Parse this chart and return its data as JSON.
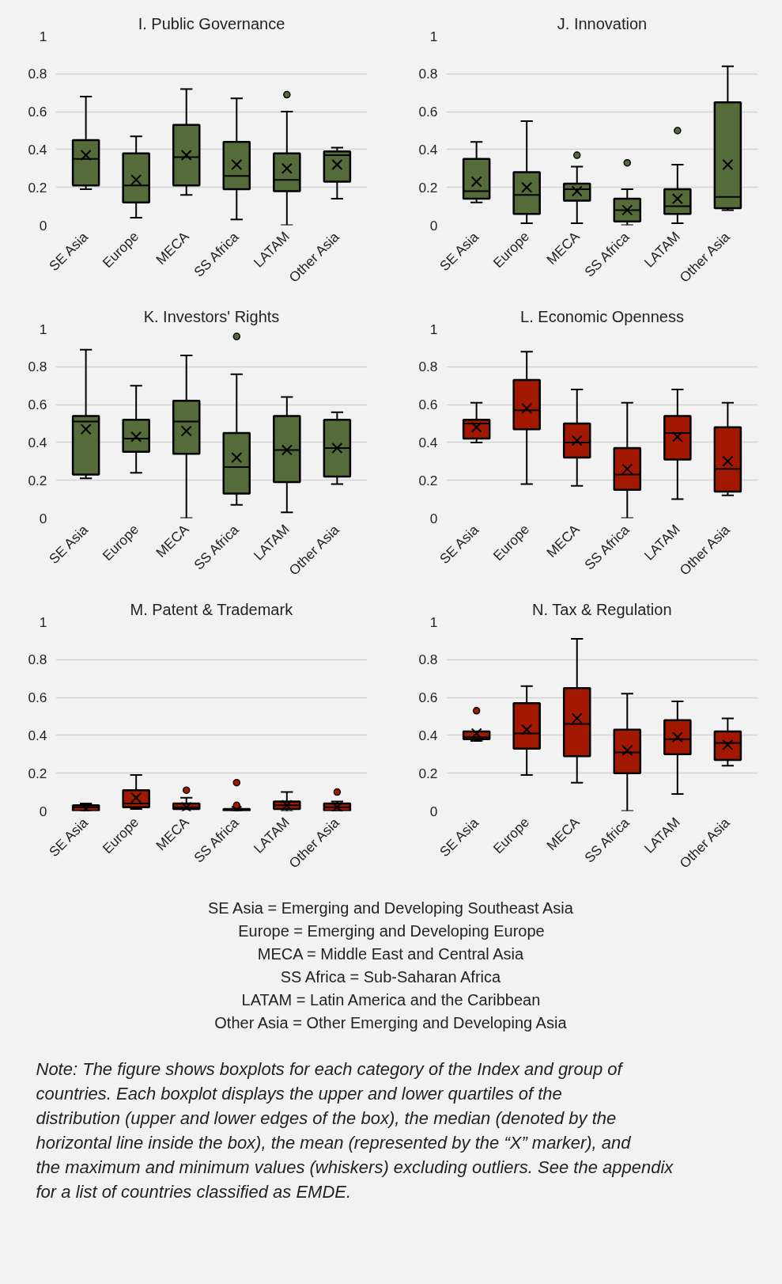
{
  "chart_data": [
    {
      "type": "box",
      "title": "I. Public Governance",
      "categories": [
        "SE Asia",
        "Europe",
        "MECA",
        "SS Africa",
        "LATAM",
        "Other Asia"
      ],
      "color": "#556b3a",
      "ylim": [
        0,
        1
      ],
      "yticks": [
        0,
        0.2,
        0.4,
        0.6,
        0.8,
        1
      ],
      "grid": "y",
      "boxes": [
        {
          "low": 0.19,
          "q1": 0.21,
          "median": 0.35,
          "q3": 0.45,
          "high": 0.68,
          "mean": 0.37
        },
        {
          "low": 0.04,
          "q1": 0.12,
          "median": 0.21,
          "q3": 0.38,
          "high": 0.47,
          "mean": 0.24
        },
        {
          "low": 0.16,
          "q1": 0.21,
          "median": 0.36,
          "q3": 0.53,
          "high": 0.72,
          "mean": 0.37
        },
        {
          "low": 0.03,
          "q1": 0.19,
          "median": 0.26,
          "q3": 0.44,
          "high": 0.67,
          "mean": 0.32
        },
        {
          "low": 0,
          "q1": 0.18,
          "median": 0.24,
          "q3": 0.38,
          "high": 0.6,
          "mean": 0.3,
          "outliers": [
            0.69
          ]
        },
        {
          "low": 0.14,
          "q1": 0.23,
          "median": 0.37,
          "q3": 0.39,
          "high": 0.41,
          "mean": 0.32
        }
      ]
    },
    {
      "type": "box",
      "title": "J. Innovation",
      "categories": [
        "SE Asia",
        "Europe",
        "MECA",
        "SS Africa",
        "LATAM",
        "Other Asia"
      ],
      "color": "#556b3a",
      "ylim": [
        0,
        1
      ],
      "yticks": [
        0,
        0.2,
        0.4,
        0.6,
        0.8,
        1
      ],
      "grid": "y",
      "boxes": [
        {
          "low": 0.12,
          "q1": 0.14,
          "median": 0.18,
          "q3": 0.35,
          "high": 0.44,
          "mean": 0.23
        },
        {
          "low": 0.01,
          "q1": 0.06,
          "median": 0.16,
          "q3": 0.28,
          "high": 0.55,
          "mean": 0.2
        },
        {
          "low": 0.01,
          "q1": 0.13,
          "median": 0.19,
          "q3": 0.22,
          "high": 0.31,
          "mean": 0.18,
          "outliers": [
            0.37
          ]
        },
        {
          "low": 0,
          "q1": 0.02,
          "median": 0.08,
          "q3": 0.14,
          "high": 0.19,
          "mean": 0.08,
          "outliers": [
            0.33
          ]
        },
        {
          "low": 0.01,
          "q1": 0.06,
          "median": 0.1,
          "q3": 0.19,
          "high": 0.32,
          "mean": 0.14,
          "outliers": [
            0.5
          ]
        },
        {
          "low": 0.08,
          "q1": 0.09,
          "median": 0.15,
          "q3": 0.65,
          "high": 0.84,
          "mean": 0.32
        }
      ]
    },
    {
      "type": "box",
      "title": "K. Investors' Rights",
      "categories": [
        "SE Asia",
        "Europe",
        "MECA",
        "SS Africa",
        "LATAM",
        "Other Asia"
      ],
      "color": "#556b3a",
      "ylim": [
        0,
        1
      ],
      "yticks": [
        0,
        0.2,
        0.4,
        0.6,
        0.8,
        1
      ],
      "grid": "y",
      "boxes": [
        {
          "low": 0.21,
          "q1": 0.23,
          "median": 0.51,
          "q3": 0.54,
          "high": 0.89,
          "mean": 0.47
        },
        {
          "low": 0.24,
          "q1": 0.35,
          "median": 0.42,
          "q3": 0.52,
          "high": 0.7,
          "mean": 0.43
        },
        {
          "low": 0,
          "q1": 0.34,
          "median": 0.51,
          "q3": 0.62,
          "high": 0.86,
          "mean": 0.46
        },
        {
          "low": 0.07,
          "q1": 0.13,
          "median": 0.27,
          "q3": 0.45,
          "high": 0.76,
          "mean": 0.32,
          "outliers": [
            0.96
          ]
        },
        {
          "low": 0.03,
          "q1": 0.19,
          "median": 0.36,
          "q3": 0.54,
          "high": 0.64,
          "mean": 0.36
        },
        {
          "low": 0.18,
          "q1": 0.22,
          "median": 0.37,
          "q3": 0.52,
          "high": 0.56,
          "mean": 0.37
        }
      ]
    },
    {
      "type": "box",
      "title": "L. Economic Openness",
      "categories": [
        "SE Asia",
        "Europe",
        "MECA",
        "SS Africa",
        "LATAM",
        "Other Asia"
      ],
      "color": "#a31800",
      "ylim": [
        0,
        1
      ],
      "yticks": [
        0,
        0.2,
        0.4,
        0.6,
        0.8,
        1
      ],
      "grid": "y",
      "boxes": [
        {
          "low": 0.4,
          "q1": 0.42,
          "median": 0.5,
          "q3": 0.52,
          "high": 0.61,
          "mean": 0.48
        },
        {
          "low": 0.18,
          "q1": 0.47,
          "median": 0.57,
          "q3": 0.73,
          "high": 0.88,
          "mean": 0.58
        },
        {
          "low": 0.17,
          "q1": 0.32,
          "median": 0.4,
          "q3": 0.5,
          "high": 0.68,
          "mean": 0.41
        },
        {
          "low": 0,
          "q1": 0.15,
          "median": 0.23,
          "q3": 0.37,
          "high": 0.61,
          "mean": 0.26
        },
        {
          "low": 0.1,
          "q1": 0.31,
          "median": 0.45,
          "q3": 0.54,
          "high": 0.68,
          "mean": 0.43
        },
        {
          "low": 0.12,
          "q1": 0.14,
          "median": 0.26,
          "q3": 0.48,
          "high": 0.61,
          "mean": 0.3
        }
      ]
    },
    {
      "type": "box",
      "title": "M. Patent & Trademark",
      "categories": [
        "SE Asia",
        "Europe",
        "MECA",
        "SS Africa",
        "LATAM",
        "Other Asia"
      ],
      "color": "#a31800",
      "ylim": [
        0,
        1
      ],
      "yticks": [
        0,
        0.2,
        0.4,
        0.6,
        0.8,
        1
      ],
      "grid": "y",
      "boxes": [
        {
          "low": 0,
          "q1": 0,
          "median": 0.02,
          "q3": 0.03,
          "high": 0.04,
          "mean": 0.01
        },
        {
          "low": 0.01,
          "q1": 0.02,
          "median": 0.04,
          "q3": 0.11,
          "high": 0.19,
          "mean": 0.07
        },
        {
          "low": 0.01,
          "q1": 0.01,
          "median": 0.02,
          "q3": 0.04,
          "high": 0.07,
          "mean": 0.02,
          "outliers": [
            0.11
          ]
        },
        {
          "low": 0,
          "q1": 0,
          "median": 0.01,
          "q3": 0.01,
          "high": 0.01,
          "mean": 0,
          "outliers": [
            0.03,
            0.15
          ]
        },
        {
          "low": 0,
          "q1": 0.01,
          "median": 0.03,
          "q3": 0.05,
          "high": 0.1,
          "mean": 0.03
        },
        {
          "low": 0,
          "q1": 0,
          "median": 0.02,
          "q3": 0.04,
          "high": 0.05,
          "mean": 0.02,
          "outliers": [
            0.1
          ]
        }
      ]
    },
    {
      "type": "box",
      "title": "N. Tax & Regulation",
      "categories": [
        "SE Asia",
        "Europe",
        "MECA",
        "SS Africa",
        "LATAM",
        "Other Asia"
      ],
      "color": "#a31800",
      "ylim": [
        0,
        1
      ],
      "yticks": [
        0,
        0.2,
        0.4,
        0.6,
        0.8,
        1
      ],
      "grid": "y",
      "boxes": [
        {
          "low": 0.37,
          "q1": 0.38,
          "median": 0.39,
          "q3": 0.42,
          "high": 0.42,
          "mean": 0.41,
          "outliers": [
            0.53
          ]
        },
        {
          "low": 0.19,
          "q1": 0.33,
          "median": 0.41,
          "q3": 0.57,
          "high": 0.66,
          "mean": 0.43
        },
        {
          "low": 0.15,
          "q1": 0.29,
          "median": 0.46,
          "q3": 0.65,
          "high": 0.91,
          "mean": 0.49
        },
        {
          "low": 0,
          "q1": 0.2,
          "median": 0.31,
          "q3": 0.43,
          "high": 0.62,
          "mean": 0.32
        },
        {
          "low": 0.09,
          "q1": 0.3,
          "median": 0.38,
          "q3": 0.48,
          "high": 0.58,
          "mean": 0.39
        },
        {
          "low": 0.24,
          "q1": 0.27,
          "median": 0.36,
          "q3": 0.42,
          "high": 0.49,
          "mean": 0.35
        }
      ]
    },
    {
      "type": "other",
      "annotations": [
        "SE Asia = Emerging and Developing Southeast Asia",
        "Europe = Emerging and Developing Europe",
        "MECA = Middle East and Central Asia",
        "SS Africa = Sub-Saharan Africa",
        "LATAM = Latin America and the Caribbean",
        "Other Asia = Other Emerging and Developing Asia",
        "Note: The figure shows boxplots for each category of the Index and group of countries. Each boxplot displays the upper and lower quartiles of the distribution (upper and lower edges of the box), the median (denoted by the horizontal line inside the box), the mean (represented by the “X” marker), and the maximum and minimum values (whiskers) excluding outliers. See the appendix for a list of countries classified as EMDE."
      ]
    }
  ]
}
